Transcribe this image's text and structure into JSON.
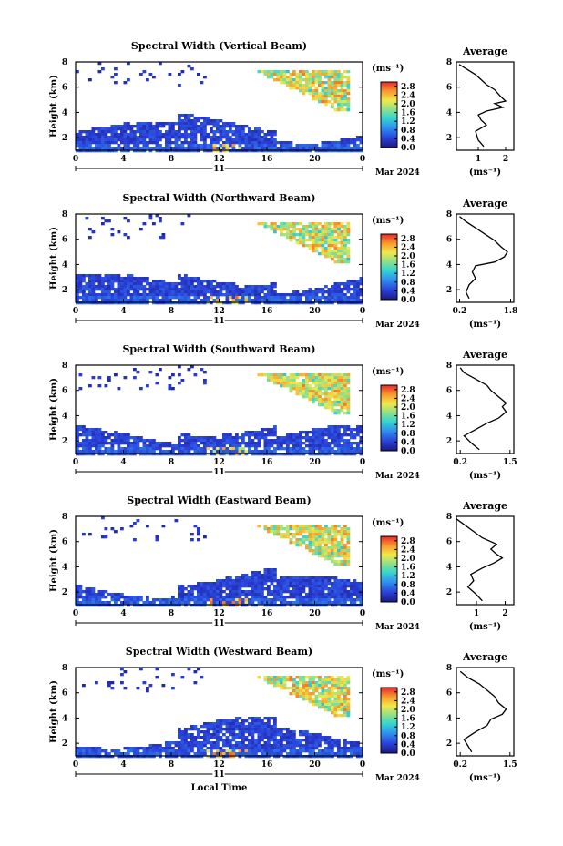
{
  "chart_data": [
    {
      "type": "heatmap",
      "title": "Spectral Width (Vertical Beam)",
      "ylabel": "Height (km)",
      "x_ticks": [
        "0",
        "4",
        "8",
        "12",
        "16",
        "20",
        "0"
      ],
      "y_ticks": [
        "2",
        "4",
        "6",
        "8"
      ],
      "xlim_hours": [
        0,
        24
      ],
      "ylim_km": [
        1,
        8
      ],
      "date_day": "11",
      "date_month_year": "Mar 2024",
      "colorbar": {
        "unit": "(ms⁻¹)",
        "ticks": [
          "0.0",
          "0.4",
          "0.8",
          "1.2",
          "1.6",
          "2.0",
          "2.4",
          "2.8"
        ],
        "range": [
          0,
          3.0
        ]
      },
      "average": {
        "title": "Average",
        "xlabel": "(ms⁻¹)",
        "x_ticks": [
          "1",
          "2"
        ],
        "xlim": [
          0.2,
          2.3
        ],
        "y_ticks": [
          "2",
          "4",
          "6",
          "8"
        ],
        "profile": [
          [
            1.2,
            1.3
          ],
          [
            1.0,
            1.8
          ],
          [
            0.9,
            2.5
          ],
          [
            1.3,
            3.0
          ],
          [
            1.1,
            3.4
          ],
          [
            1.0,
            3.8
          ],
          [
            1.3,
            4.1
          ],
          [
            1.9,
            4.4
          ],
          [
            1.6,
            4.7
          ],
          [
            2.0,
            4.9
          ],
          [
            1.8,
            5.3
          ],
          [
            1.6,
            5.8
          ],
          [
            1.3,
            6.2
          ],
          [
            1.1,
            6.6
          ],
          [
            0.9,
            7.0
          ],
          [
            0.6,
            7.4
          ],
          [
            0.3,
            7.8
          ]
        ]
      }
    },
    {
      "type": "heatmap",
      "title": "Spectral Width (Northward Beam)",
      "ylabel": "Height (km)",
      "x_ticks": [
        "0",
        "4",
        "8",
        "12",
        "16",
        "20",
        "0"
      ],
      "y_ticks": [
        "2",
        "4",
        "6",
        "8"
      ],
      "xlim_hours": [
        0,
        24
      ],
      "ylim_km": [
        1,
        8
      ],
      "date_day": "11",
      "date_month_year": "Mar 2024",
      "colorbar": {
        "unit": "(ms⁻¹)",
        "ticks": [
          "0.0",
          "0.4",
          "0.8",
          "1.2",
          "1.6",
          "2.0",
          "2.4",
          "2.8"
        ],
        "range": [
          0,
          3.0
        ]
      },
      "average": {
        "title": "Average",
        "xlabel": "(ms⁻¹)",
        "x_ticks": [
          "0.2",
          "1.8"
        ],
        "xlim": [
          0.1,
          1.9
        ],
        "y_ticks": [
          "2",
          "4",
          "6",
          "8"
        ],
        "profile": [
          [
            0.5,
            1.3
          ],
          [
            0.4,
            1.8
          ],
          [
            0.5,
            2.4
          ],
          [
            0.7,
            2.9
          ],
          [
            0.6,
            3.4
          ],
          [
            0.7,
            3.9
          ],
          [
            1.3,
            4.2
          ],
          [
            1.6,
            4.6
          ],
          [
            1.7,
            5.0
          ],
          [
            1.5,
            5.4
          ],
          [
            1.3,
            5.9
          ],
          [
            1.0,
            6.4
          ],
          [
            0.7,
            6.9
          ],
          [
            0.4,
            7.4
          ],
          [
            0.2,
            7.8
          ]
        ]
      }
    },
    {
      "type": "heatmap",
      "title": "Spectral Width (Southward Beam)",
      "ylabel": "Height (km)",
      "x_ticks": [
        "0",
        "4",
        "8",
        "12",
        "16",
        "20",
        "0"
      ],
      "y_ticks": [
        "2",
        "4",
        "6",
        "8"
      ],
      "xlim_hours": [
        0,
        24
      ],
      "ylim_km": [
        1,
        8
      ],
      "date_day": "11",
      "date_month_year": "Mar 2024",
      "colorbar": {
        "unit": "(ms⁻¹)",
        "ticks": [
          "0.0",
          "0.4",
          "0.8",
          "1.2",
          "1.6",
          "2.0",
          "2.4",
          "2.8"
        ],
        "range": [
          0,
          3.0
        ]
      },
      "average": {
        "title": "Average",
        "xlabel": "(ms⁻¹)",
        "x_ticks": [
          "0.2",
          "1.5"
        ],
        "xlim": [
          0.1,
          1.6
        ],
        "y_ticks": [
          "2",
          "4",
          "6",
          "8"
        ],
        "profile": [
          [
            0.7,
            1.3
          ],
          [
            0.5,
            1.8
          ],
          [
            0.3,
            2.4
          ],
          [
            0.6,
            2.9
          ],
          [
            0.9,
            3.4
          ],
          [
            1.2,
            3.8
          ],
          [
            1.4,
            4.3
          ],
          [
            1.3,
            4.7
          ],
          [
            1.4,
            5.0
          ],
          [
            1.2,
            5.5
          ],
          [
            1.0,
            6.0
          ],
          [
            0.9,
            6.4
          ],
          [
            0.6,
            6.9
          ],
          [
            0.3,
            7.4
          ],
          [
            0.2,
            7.8
          ]
        ]
      }
    },
    {
      "type": "heatmap",
      "title": "Spectral Width (Eastward Beam)",
      "ylabel": "Height (km)",
      "x_ticks": [
        "0",
        "4",
        "8",
        "12",
        "16",
        "20",
        "0"
      ],
      "y_ticks": [
        "2",
        "4",
        "6",
        "8"
      ],
      "xlim_hours": [
        0,
        24
      ],
      "ylim_km": [
        1,
        8
      ],
      "date_day": "11",
      "date_month_year": "Mar 2024",
      "colorbar": {
        "unit": "(ms⁻¹)",
        "ticks": [
          "0.0",
          "0.4",
          "0.8",
          "1.2",
          "1.6",
          "2.0",
          "2.4",
          "2.8"
        ],
        "range": [
          0,
          3.0
        ]
      },
      "average": {
        "title": "Average",
        "xlabel": "(ms⁻¹)",
        "x_ticks": [
          "1",
          "2"
        ],
        "xlim": [
          0.3,
          2.3
        ],
        "y_ticks": [
          "2",
          "4",
          "6",
          "8"
        ],
        "profile": [
          [
            1.2,
            1.3
          ],
          [
            1.0,
            1.8
          ],
          [
            0.7,
            2.4
          ],
          [
            0.9,
            2.9
          ],
          [
            0.8,
            3.4
          ],
          [
            1.2,
            3.9
          ],
          [
            1.6,
            4.3
          ],
          [
            1.9,
            4.7
          ],
          [
            1.7,
            5.0
          ],
          [
            1.5,
            5.4
          ],
          [
            1.7,
            5.8
          ],
          [
            1.2,
            6.3
          ],
          [
            0.9,
            6.8
          ],
          [
            0.6,
            7.3
          ],
          [
            0.3,
            7.8
          ]
        ]
      }
    },
    {
      "type": "heatmap",
      "title": "Spectral Width (Westward Beam)",
      "ylabel": "Height (km)",
      "x_ticks": [
        "0",
        "4",
        "8",
        "12",
        "16",
        "20",
        "0"
      ],
      "y_ticks": [
        "2",
        "4",
        "6",
        "8"
      ],
      "xlim_hours": [
        0,
        24
      ],
      "ylim_km": [
        1,
        8
      ],
      "date_day": "11",
      "date_month_year": "Mar 2024",
      "xlabel": "Local Time",
      "colorbar": {
        "unit": "(ms⁻¹)",
        "ticks": [
          "0.0",
          "0.4",
          "0.8",
          "1.2",
          "1.6",
          "2.0",
          "2.4",
          "2.8"
        ],
        "range": [
          0,
          3.0
        ]
      },
      "average": {
        "title": "Average",
        "xlabel": "(ms⁻¹)",
        "x_ticks": [
          "0.2",
          "1.5"
        ],
        "xlim": [
          0.1,
          1.6
        ],
        "y_ticks": [
          "2",
          "4",
          "6",
          "8"
        ],
        "profile": [
          [
            0.5,
            1.3
          ],
          [
            0.4,
            1.8
          ],
          [
            0.3,
            2.3
          ],
          [
            0.6,
            2.9
          ],
          [
            0.9,
            3.4
          ],
          [
            1.0,
            3.9
          ],
          [
            1.3,
            4.3
          ],
          [
            1.4,
            4.7
          ],
          [
            1.2,
            5.2
          ],
          [
            1.1,
            5.7
          ],
          [
            0.9,
            6.2
          ],
          [
            0.7,
            6.7
          ],
          [
            0.4,
            7.2
          ],
          [
            0.2,
            7.7
          ]
        ]
      }
    }
  ]
}
